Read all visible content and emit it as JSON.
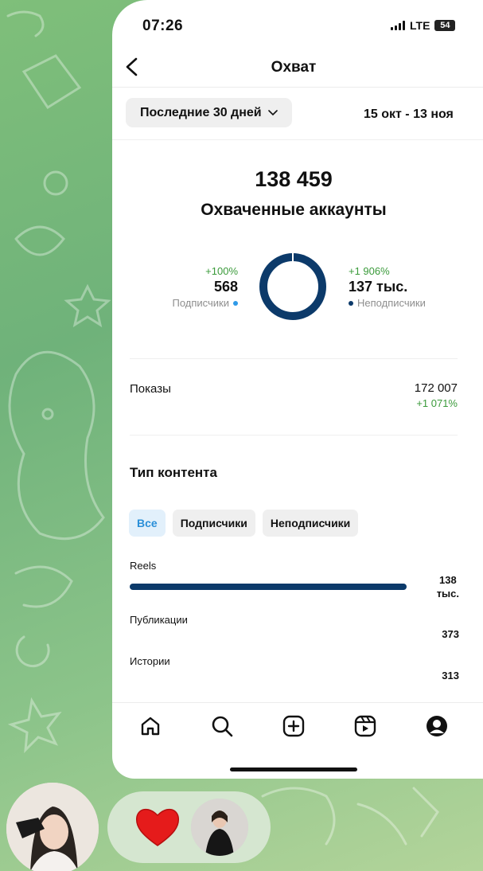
{
  "status_bar": {
    "time": "07:26",
    "network": "LTE",
    "battery": "54"
  },
  "nav": {
    "title": "Охват"
  },
  "filter": {
    "range_label": "Последние 30 дней",
    "date_range": "15 окт - 13 ноя"
  },
  "reach": {
    "total": "138 459",
    "label": "Охваченные аккаунты",
    "followers": {
      "change": "+100%",
      "value": "568",
      "label": "Подписчики",
      "color": "#2f9ae8"
    },
    "non_followers": {
      "change": "+1 906%",
      "value": "137 тыс.",
      "label": "Неподписчики",
      "color": "#0c3a6a"
    },
    "followers_share": 0.004
  },
  "impressions": {
    "label": "Показы",
    "value": "172 007",
    "change": "+1 071%"
  },
  "content_type": {
    "title": "Тип контента",
    "chips": [
      {
        "label": "Все",
        "active": true
      },
      {
        "label": "Подписчики",
        "active": false
      },
      {
        "label": "Неподписчики",
        "active": false
      }
    ],
    "rows": [
      {
        "label": "Reels",
        "value_line1": "138",
        "value_line2": "тыс.",
        "share": 1.0
      },
      {
        "label": "Публикации",
        "value_line1": "373",
        "value_line2": "",
        "share": 0.003
      },
      {
        "label": "Истории",
        "value_line1": "313",
        "value_line2": "",
        "share": 0.002
      }
    ]
  },
  "tabbar": {
    "icons": [
      "home-icon",
      "search-icon",
      "create-icon",
      "reels-icon",
      "profile-icon"
    ]
  },
  "colors": {
    "accent": "#0c3a6a",
    "positive": "#3a9a3a",
    "chip_active": "#2a8fd8",
    "reaction": "#e51b1b"
  }
}
